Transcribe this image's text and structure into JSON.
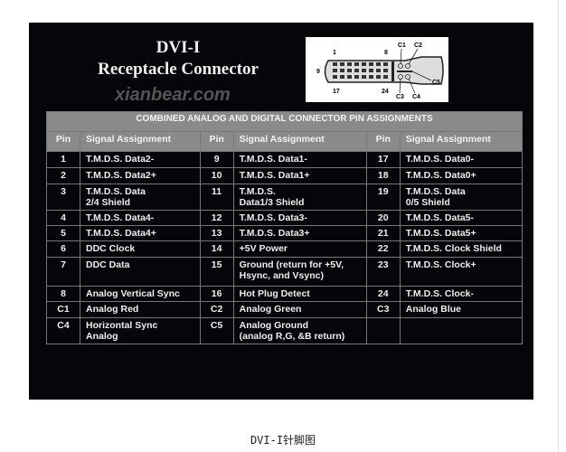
{
  "figure": {
    "title_line1": "DVI-I",
    "title_line2": "Receptacle Connector",
    "diagram_labels": [
      "1",
      "8",
      "9",
      "17",
      "24",
      "C1",
      "C2",
      "C3",
      "C4",
      "C5"
    ],
    "watermark": "xianbear.com",
    "table": {
      "caption": "COMBINED ANALOG AND DIGITAL CONNECTOR PIN ASSIGNMENTS",
      "headers": [
        "Pin",
        "Signal Assignment",
        "Pin",
        "Signal Assignment",
        "Pin",
        "Signal Assignment"
      ],
      "rows": [
        [
          "1",
          "T.M.D.S. Data2-",
          "9",
          "T.M.D.S. Data1-",
          "17",
          "T.M.D.S. Data0-"
        ],
        [
          "2",
          "T.M.D.S. Data2+",
          "10",
          "T.M.D.S. Data1+",
          "18",
          "T.M.D.S. Data0+"
        ],
        [
          "3",
          "T.M.D.S. Data\n2/4 Shield",
          "11",
          "T.M.D.S.\n Data1/3 Shield",
          "19",
          "T.M.D.S. Data\n0/5 Shield"
        ],
        [
          "4",
          "T.M.D.S. Data4-",
          "12",
          "T.M.D.S. Data3-",
          "20",
          "T.M.D.S. Data5-"
        ],
        [
          "5",
          "T.M.D.S. Data4+",
          "13",
          "T.M.D.S. Data3+",
          "21",
          "T.M.D.S. Data5+"
        ],
        [
          "6",
          "DDC Clock",
          "14",
          "+5V Power",
          "22",
          "T.M.D.S. Clock Shield"
        ],
        [
          "7",
          "DDC Data",
          "15",
          "Ground (return for +5V,\nHsync, and Vsync)",
          "23",
          "T.M.D.S. Clock+"
        ],
        [
          "8",
          "Analog Vertical Sync",
          "16",
          "Hot Plug Detect",
          "24",
          "T.M.D.S. Clock-"
        ],
        [
          "C1",
          "Analog Red",
          "C2",
          "Analog Green",
          "C3",
          "Analog Blue"
        ],
        [
          "C4",
          "Horizontal Sync\n        Analog",
          "C5",
          "Analog Ground\n(analog R,G, &B return)",
          "",
          ""
        ]
      ]
    }
  },
  "caption": "DVI-I针脚图"
}
